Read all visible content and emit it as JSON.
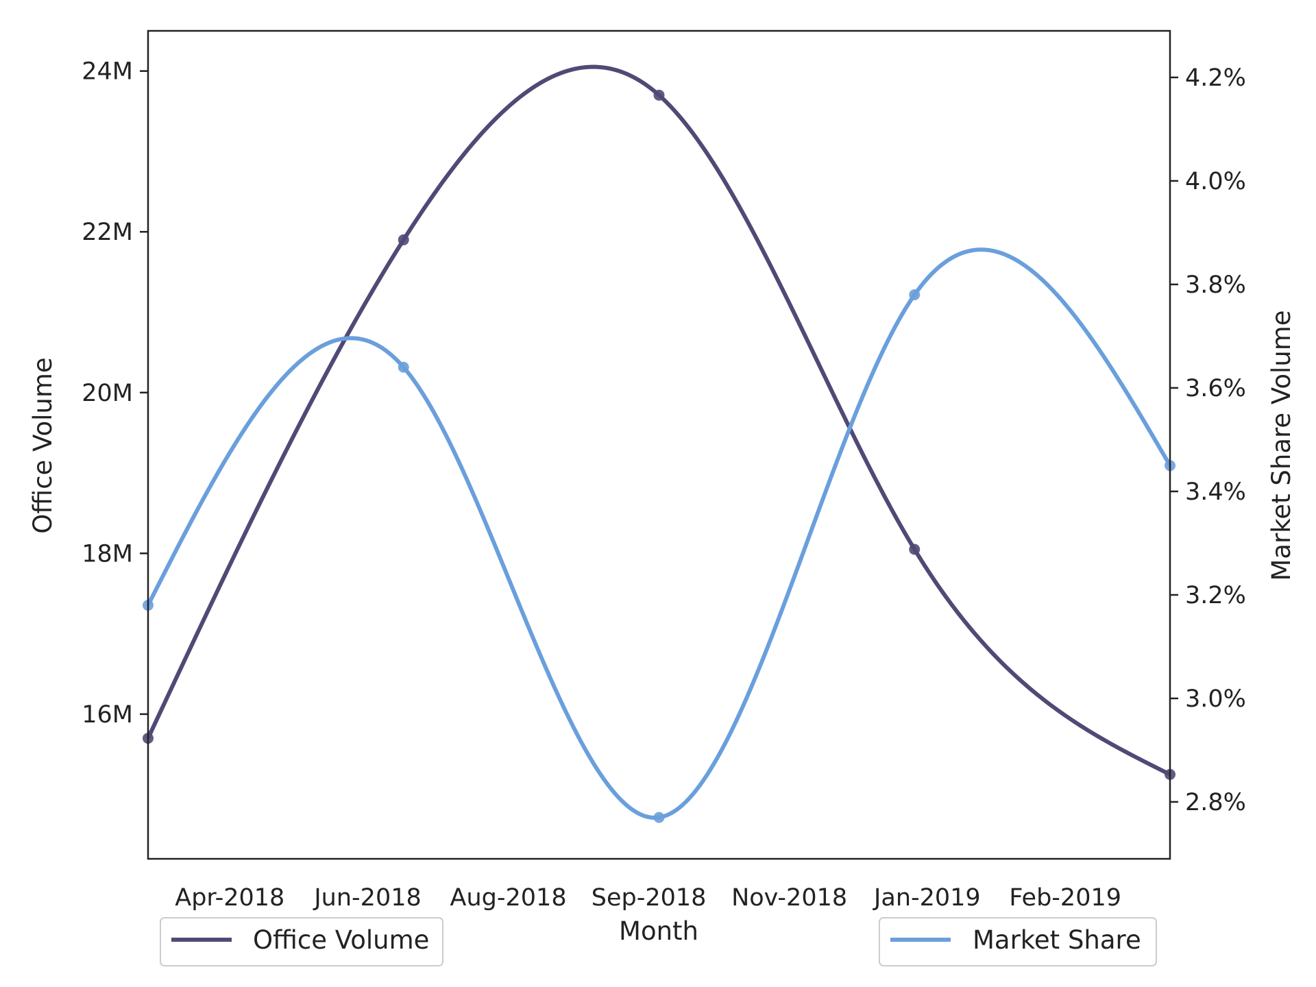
{
  "chart_data": {
    "type": "line",
    "title": "",
    "xlabel": "Month",
    "ylabel_left": "Office Volume",
    "ylabel_right": "Market Share Volume",
    "x_tick_labels": [
      "Apr-2018",
      "Jun-2018",
      "Aug-2018",
      "Sep-2018",
      "Nov-2018",
      "Jan-2019",
      "Feb-2019"
    ],
    "x_ticks_at": [
      0.32,
      0.86,
      1.41,
      1.96,
      2.51,
      3.05,
      3.59
    ],
    "x_range": [
      0,
      4
    ],
    "left_axis": {
      "ylim": [
        14.2,
        24.5
      ],
      "ticks": [
        16,
        18,
        20,
        22,
        24
      ],
      "tick_labels": [
        "16M",
        "18M",
        "20M",
        "22M",
        "24M"
      ],
      "unit": "M"
    },
    "right_axis": {
      "ylim": [
        2.69,
        4.29
      ],
      "ticks": [
        2.8,
        3.0,
        3.2,
        3.4,
        3.6,
        3.8,
        4.0,
        4.2
      ],
      "tick_labels": [
        "2.8%",
        "3.0%",
        "3.2%",
        "3.4%",
        "3.6%",
        "3.8%",
        "4.0%",
        "4.2%"
      ],
      "unit": "%"
    },
    "series": [
      {
        "name": "Office Volume",
        "axis": "left",
        "color": "#4f4a75",
        "points_x": [
          0,
          1,
          2,
          3,
          4
        ],
        "points_y": [
          15.7,
          21.9,
          23.7,
          18.05,
          15.25
        ]
      },
      {
        "name": "Market Share",
        "axis": "right",
        "color": "#6a9fdc",
        "points_x": [
          0,
          1,
          2,
          3,
          4
        ],
        "points_y": [
          3.18,
          3.64,
          2.77,
          3.78,
          3.45
        ]
      }
    ],
    "legend": [
      {
        "label": "Office Volume",
        "color": "#4f4a75",
        "placement": "bottom-left"
      },
      {
        "label": "Market Share",
        "color": "#6a9fdc",
        "placement": "bottom-right"
      }
    ],
    "grid": false
  }
}
